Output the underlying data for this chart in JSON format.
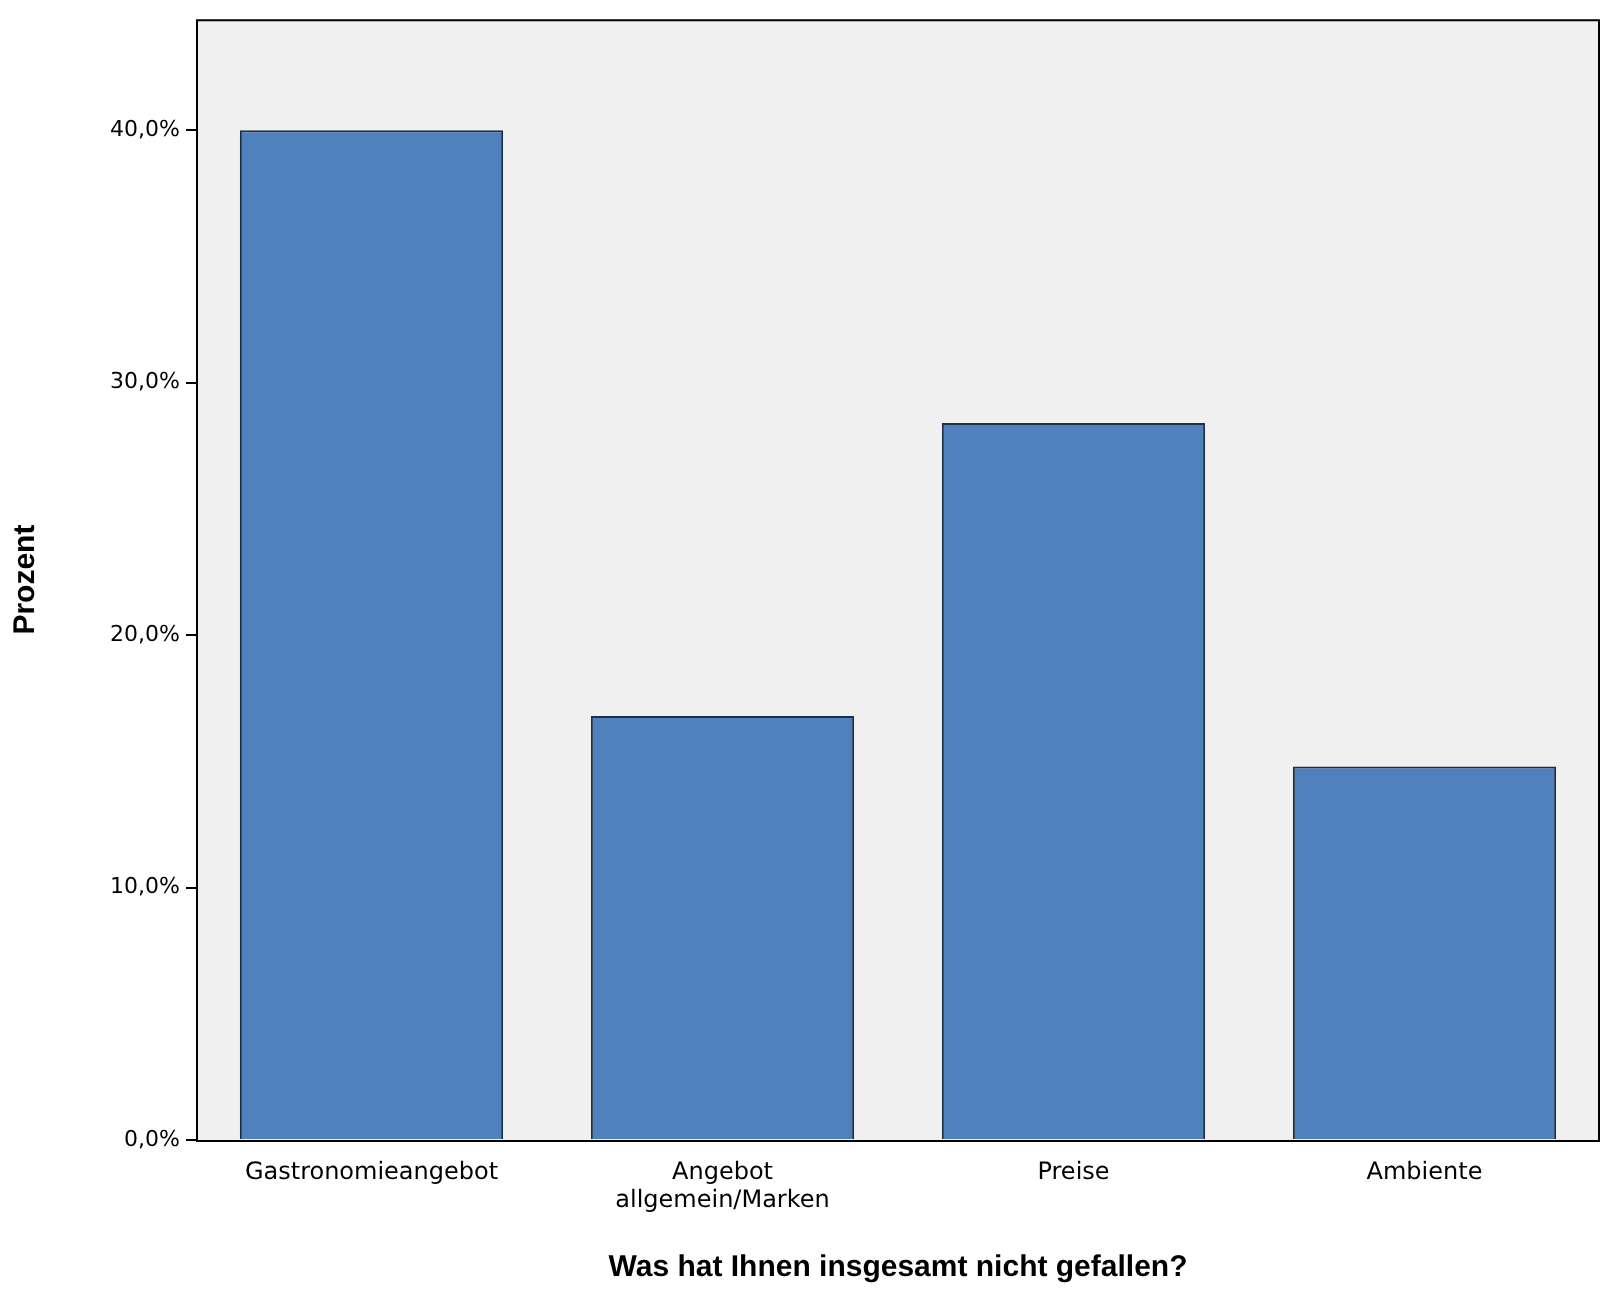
{
  "chart_data": {
    "type": "bar",
    "xlabel": "Was hat Ihnen insgesamt nicht gefallen?",
    "ylabel": "Prozent",
    "categories": [
      "Gastronomieangebot",
      "Angebot allgemein/Marken",
      "Preise",
      "Ambiente"
    ],
    "values": [
      40.0,
      16.8,
      28.4,
      14.8
    ],
    "color": "#4f81bd",
    "ylim": [
      0,
      44.4
    ],
    "yticks": [
      {
        "value": 0,
        "label": "0,0%"
      },
      {
        "value": 10,
        "label": "10,0%"
      },
      {
        "value": 20,
        "label": "20,0%"
      },
      {
        "value": 30,
        "label": "30,0%"
      },
      {
        "value": 40,
        "label": "40,0%"
      }
    ],
    "grid": false,
    "legend": false
  }
}
